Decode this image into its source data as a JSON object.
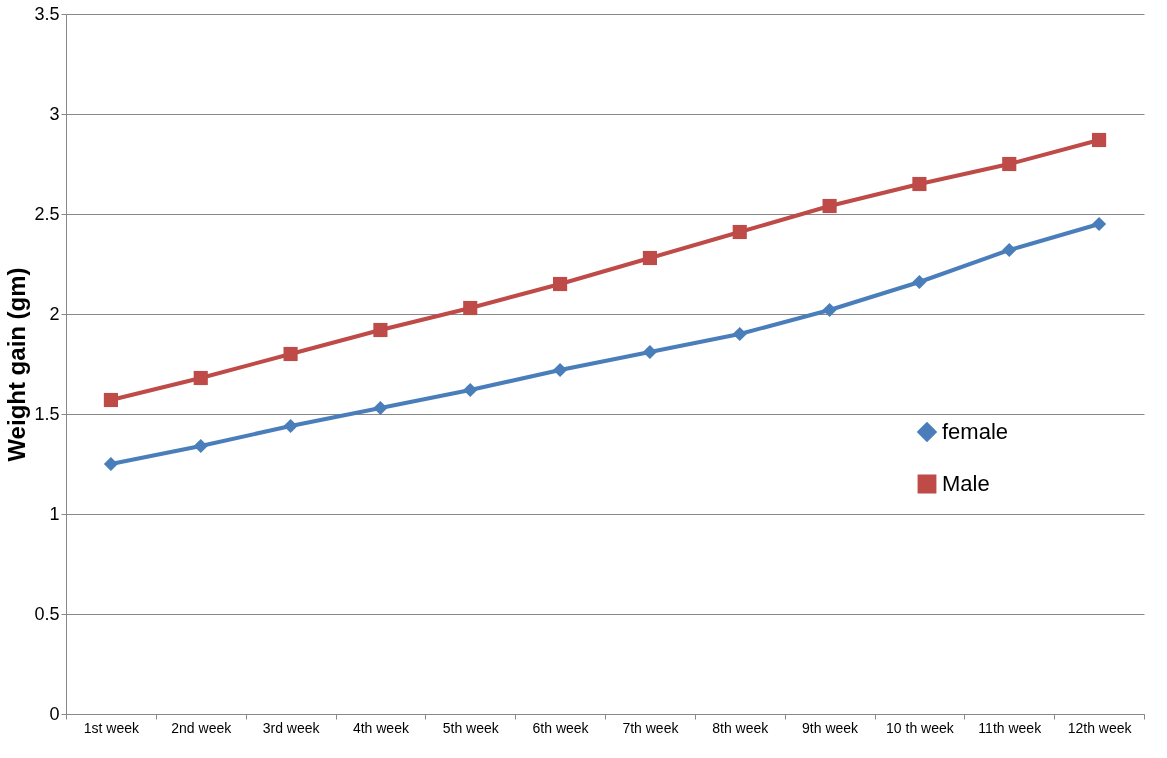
{
  "chart_data": {
    "type": "line",
    "ylabel": "Weight gain (gm)",
    "categories": [
      "1st week",
      "2nd week",
      "3rd week",
      "4th week",
      "5th week",
      "6th week",
      "7th week",
      "8th week",
      "9th week",
      "10 th week",
      "11th week",
      "12th week"
    ],
    "series": [
      {
        "name": "female",
        "color": "#4a7ebb",
        "marker": "diamond",
        "values": [
          1.25,
          1.34,
          1.44,
          1.53,
          1.62,
          1.72,
          1.81,
          1.9,
          2.02,
          2.16,
          2.32,
          2.45
        ]
      },
      {
        "name": "Male",
        "color": "#be4b48",
        "marker": "square",
        "values": [
          1.57,
          1.68,
          1.8,
          1.92,
          2.03,
          2.15,
          2.28,
          2.41,
          2.54,
          2.65,
          2.75,
          2.87
        ]
      }
    ],
    "ylim": [
      0,
      3.5
    ],
    "yticks": [
      0,
      0.5,
      1,
      1.5,
      2,
      2.5,
      3,
      3.5
    ],
    "grid": "y",
    "legend": "right",
    "line_style": "solid"
  }
}
